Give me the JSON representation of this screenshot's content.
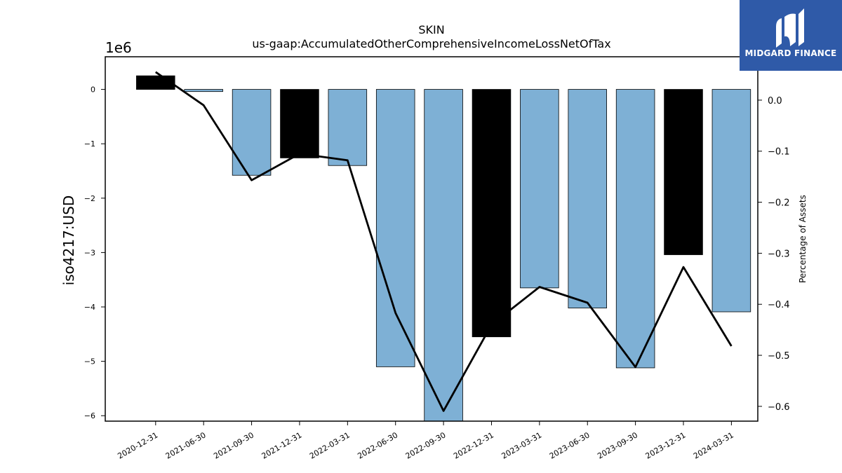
{
  "chart_data": {
    "type": "bar",
    "title": "SKIN",
    "subtitle": "us-gaap:AccumulatedOtherComprehensiveIncomeLossNetOfTax",
    "ylabel": "iso4217:USD",
    "y2label": "Percentage of Assets",
    "y_multiplier": "1e6",
    "categories": [
      "2020-12-31",
      "2021-06-30",
      "2021-09-30",
      "2021-12-31",
      "2022-03-31",
      "2022-06-30",
      "2022-09-30",
      "2022-12-31",
      "2023-03-31",
      "2023-06-30",
      "2023-09-30",
      "2023-12-31",
      "2024-03-31"
    ],
    "values": [
      0.25,
      -0.04,
      -1.58,
      -1.26,
      -1.4,
      -5.1,
      -6.15,
      -4.55,
      -3.65,
      -4.02,
      -5.12,
      -3.04,
      -4.09
    ],
    "bar_colors": [
      "#000000",
      "#7eb0d5",
      "#7eb0d5",
      "#000000",
      "#7eb0d5",
      "#7eb0d5",
      "#7eb0d5",
      "#000000",
      "#7eb0d5",
      "#7eb0d5",
      "#7eb0d5",
      "#000000",
      "#7eb0d5"
    ],
    "line_values": [
      0.055,
      -0.01,
      -0.157,
      -0.105,
      -0.118,
      -0.417,
      -0.609,
      -0.44,
      -0.366,
      -0.397,
      -0.523,
      -0.327,
      -0.482
    ],
    "ylim": [
      -6.1,
      0.6
    ],
    "y2lim": [
      -0.629,
      0.085
    ],
    "yticks": [
      0,
      -1,
      -2,
      -3,
      -4,
      -5,
      -6
    ],
    "y2ticks": [
      0.0,
      -0.1,
      -0.2,
      -0.3,
      -0.4,
      -0.5,
      -0.6
    ],
    "grid": false
  },
  "logo": {
    "text": "MIDGARD FINANCE"
  }
}
